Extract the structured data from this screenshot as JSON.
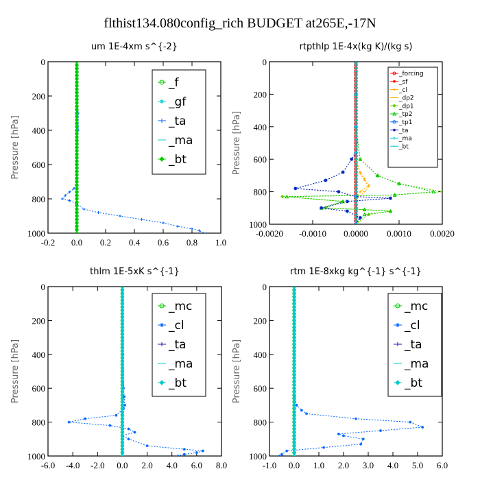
{
  "title": "flthist134.080config_rich  BUDGET at265E,-17N",
  "colors": {
    "green": "#00cc00",
    "blue": "#0066ff",
    "navy": "#1a1aaa",
    "cyan": "#00cccc",
    "red": "#ff0000",
    "orange": "#ffaa00",
    "olive": "#66cc00"
  },
  "chart_data": [
    {
      "type": "line",
      "title": "um   1E-4xm s^{-2}",
      "ylabel": "Pressure [hPa]",
      "xlim": [
        -0.2,
        1.0
      ],
      "ylim": [
        1000,
        0
      ],
      "xticks": [
        "-0.2",
        "0.0",
        "0.2",
        "0.4",
        "0.6",
        "0.8",
        "1.0"
      ],
      "yticks": [
        "0",
        "200",
        "400",
        "600",
        "800",
        "1000"
      ],
      "xtick_values": [
        -0.2,
        0.0,
        0.2,
        0.4,
        0.6,
        0.8,
        1.0
      ],
      "ytick_values": [
        0,
        200,
        400,
        600,
        800,
        1000
      ],
      "legend": [
        "_f",
        "_gf",
        "_ta",
        "_ma",
        "_bt"
      ],
      "legend_size": "large",
      "series": [
        {
          "name": "_f",
          "color": "green",
          "x": [
            0,
            0,
            0,
            0,
            0,
            0,
            0,
            0,
            0,
            0,
            0
          ],
          "y": [
            0,
            100,
            200,
            300,
            400,
            500,
            600,
            700,
            800,
            900,
            1000
          ]
        },
        {
          "name": "_gf",
          "color": "cyan",
          "x": [
            0,
            0,
            0,
            0,
            0,
            0,
            0,
            0,
            0,
            0,
            0
          ],
          "y": [
            0,
            100,
            200,
            300,
            400,
            500,
            600,
            700,
            800,
            900,
            1000
          ]
        },
        {
          "name": "_ta",
          "color": "blue",
          "x": [
            0,
            0,
            0,
            0.01,
            0.01,
            0,
            0,
            0,
            -0.02,
            -0.05,
            -0.08,
            -0.1,
            -0.05,
            0,
            0.05,
            0.15,
            0.3,
            0.45,
            0.6,
            0.7,
            0.8,
            0.85,
            0.88
          ],
          "y": [
            0,
            100,
            200,
            300,
            400,
            500,
            600,
            700,
            740,
            760,
            780,
            800,
            810,
            830,
            860,
            880,
            900,
            920,
            940,
            960,
            975,
            985,
            1000
          ]
        },
        {
          "name": "_ma",
          "color": "cyan",
          "x": [
            0,
            0,
            0,
            0,
            0,
            0,
            0,
            0,
            0,
            0,
            0
          ],
          "y": [
            0,
            100,
            200,
            300,
            400,
            500,
            600,
            700,
            800,
            900,
            1000
          ]
        },
        {
          "name": "_bt",
          "color": "green",
          "x": [
            0,
            0,
            0,
            0,
            0,
            0,
            0,
            0,
            0,
            0,
            0
          ],
          "y": [
            0,
            100,
            200,
            300,
            400,
            500,
            600,
            700,
            800,
            900,
            1000
          ]
        }
      ]
    },
    {
      "type": "line",
      "title": "rtpthlp   1E-4x(kg K)/(kg s)",
      "ylabel": "Pressure [hPa]",
      "xlim": [
        -0.002,
        0.002
      ],
      "ylim": [
        1000,
        0
      ],
      "xticks": [
        "-0.0020",
        "-0.0010",
        "0.0000",
        "0.0010",
        "0.0020"
      ],
      "yticks": [
        "0",
        "200",
        "400",
        "600",
        "800",
        "1000"
      ],
      "xtick_values": [
        -0.002,
        -0.001,
        0.0,
        0.001,
        0.002
      ],
      "ytick_values": [
        0,
        200,
        400,
        600,
        800,
        1000
      ],
      "legend": [
        "_forcing",
        "_sf",
        "_cl",
        "_dp2",
        "_dp1",
        "_tp2",
        "_tp1",
        "_ta",
        "_ma",
        "_bt"
      ],
      "legend_size": "small",
      "series": [
        {
          "name": "_forcing",
          "color": "red",
          "x": [
            0,
            0,
            0,
            0,
            0,
            0,
            0,
            0,
            0,
            0,
            0
          ],
          "y": [
            0,
            100,
            200,
            300,
            400,
            500,
            600,
            700,
            800,
            900,
            1000
          ]
        },
        {
          "name": "_sf",
          "color": "red",
          "x": [
            0,
            0,
            0,
            0,
            0,
            0,
            0,
            0,
            0,
            0,
            0
          ],
          "y": [
            0,
            100,
            200,
            300,
            400,
            500,
            600,
            700,
            800,
            900,
            1000
          ]
        },
        {
          "name": "_cl",
          "color": "orange",
          "x": [
            0,
            0,
            0,
            0,
            0.0001,
            0.0002,
            0.0003,
            0.0001,
            0,
            0,
            0
          ],
          "y": [
            0,
            200,
            400,
            600,
            680,
            720,
            760,
            800,
            850,
            900,
            1000
          ]
        },
        {
          "name": "_dp2",
          "color": "orange",
          "x": [
            0,
            0,
            0,
            0,
            0.0001,
            0.0002,
            0.0003,
            0.0002,
            0,
            0,
            0
          ],
          "y": [
            0,
            200,
            400,
            600,
            690,
            730,
            770,
            800,
            850,
            900,
            1000
          ]
        },
        {
          "name": "_dp1",
          "color": "olive",
          "x": [
            0,
            0,
            0,
            0.0001,
            0.0005,
            0.001,
            0.002,
            0.0009,
            -0.0017,
            -0.0003,
            -0.0007,
            0.0002,
            0.0008,
            0.0003,
            0
          ],
          "y": [
            0,
            200,
            400,
            600,
            700,
            750,
            800,
            820,
            830,
            860,
            900,
            910,
            920,
            940,
            1000
          ]
        },
        {
          "name": "_tp2",
          "color": "green",
          "x": [
            0,
            0,
            0,
            0.0001,
            0.0005,
            0.001,
            0.0018,
            0.0009,
            -0.0016,
            -0.0003,
            -0.0008,
            0.0002,
            0.0008,
            0.0002,
            0
          ],
          "y": [
            0,
            200,
            400,
            600,
            700,
            750,
            800,
            820,
            830,
            860,
            900,
            910,
            920,
            940,
            1000
          ]
        },
        {
          "name": "_tp1",
          "color": "blue",
          "x": [
            0,
            0,
            0,
            0,
            -0.0001,
            -0.0003,
            -0.0007,
            -0.0014,
            -0.0004,
            0,
            0.0008,
            -0.0002,
            -0.0008,
            -0.0002,
            0.0001,
            0
          ],
          "y": [
            0,
            200,
            400,
            560,
            600,
            680,
            730,
            780,
            800,
            830,
            840,
            860,
            900,
            920,
            960,
            1000
          ]
        },
        {
          "name": "_ta",
          "color": "navy",
          "x": [
            0,
            0,
            0,
            0,
            -0.0001,
            -0.0003,
            -0.0007,
            -0.0014,
            -0.0004,
            0,
            0.0008,
            -0.0002,
            -0.0008,
            -0.0002,
            0.0001,
            0
          ],
          "y": [
            0,
            200,
            400,
            560,
            600,
            680,
            730,
            780,
            800,
            830,
            840,
            860,
            900,
            920,
            960,
            1000
          ]
        },
        {
          "name": "_ma",
          "color": "cyan",
          "x": [
            0,
            0,
            0,
            0,
            0,
            0,
            0,
            0,
            0,
            0,
            0
          ],
          "y": [
            0,
            100,
            200,
            300,
            400,
            500,
            600,
            700,
            800,
            900,
            1000
          ]
        },
        {
          "name": "_bt",
          "color": "cyan",
          "x": [
            0,
            0,
            0,
            0,
            0,
            0,
            0,
            0,
            0,
            0,
            0
          ],
          "y": [
            0,
            100,
            200,
            300,
            400,
            500,
            600,
            700,
            800,
            900,
            1000
          ]
        }
      ]
    },
    {
      "type": "line",
      "title": "thlm   1E-5xK s^{-1}",
      "ylabel": "Pressure [hPa]",
      "xlim": [
        -6.0,
        8.0
      ],
      "ylim": [
        1000,
        0
      ],
      "xticks": [
        "-6.0",
        "-4.0",
        "-2.0",
        "0.0",
        "2.0",
        "4.0",
        "6.0",
        "8.0"
      ],
      "yticks": [
        "0",
        "200",
        "400",
        "600",
        "800",
        "1000"
      ],
      "xtick_values": [
        -6,
        -4,
        -2,
        0,
        2,
        4,
        6,
        8
      ],
      "ytick_values": [
        0,
        200,
        400,
        600,
        800,
        1000
      ],
      "legend": [
        "_mc",
        "_cl",
        "_ta",
        "_ma",
        "_bt"
      ],
      "legend_size": "large",
      "series": [
        {
          "name": "_mc",
          "color": "green",
          "x": [
            0,
            0,
            0,
            0,
            0,
            0,
            0,
            0,
            0,
            0,
            0
          ],
          "y": [
            0,
            100,
            200,
            300,
            400,
            500,
            600,
            700,
            800,
            900,
            1000
          ]
        },
        {
          "name": "_cl",
          "color": "blue",
          "x": [
            0,
            0.02,
            0.05,
            0.1,
            0.15,
            0.2,
            0.1,
            -0.5,
            -3,
            -4.3,
            -1,
            0.5,
            1,
            0,
            0.5,
            2,
            5,
            6.5,
            6,
            5,
            4.5
          ],
          "y": [
            0,
            200,
            400,
            600,
            650,
            700,
            720,
            760,
            780,
            800,
            820,
            840,
            860,
            880,
            900,
            940,
            960,
            970,
            980,
            990,
            1000
          ]
        },
        {
          "name": "_ta",
          "color": "navy",
          "x": [
            0,
            0,
            0,
            0,
            0,
            0,
            0,
            0,
            0,
            0,
            0
          ],
          "y": [
            0,
            100,
            200,
            300,
            400,
            500,
            600,
            700,
            800,
            900,
            1000
          ]
        },
        {
          "name": "_ma",
          "color": "cyan",
          "x": [
            0,
            0,
            0,
            0,
            0,
            0,
            0,
            0,
            0,
            0,
            0
          ],
          "y": [
            0,
            100,
            200,
            300,
            400,
            500,
            600,
            700,
            800,
            900,
            1000
          ]
        },
        {
          "name": "_bt",
          "color": "cyan",
          "x": [
            0,
            0,
            0,
            0,
            0,
            0,
            0,
            0,
            0,
            0,
            0
          ],
          "y": [
            0,
            100,
            200,
            300,
            400,
            500,
            600,
            700,
            800,
            900,
            1000
          ]
        }
      ]
    },
    {
      "type": "line",
      "title": "rtm   1E-8xkg kg^{-1} s^{-1}",
      "ylabel": "Pressure [hPa]",
      "xlim": [
        -1.0,
        6.0
      ],
      "ylim": [
        1000,
        0
      ],
      "xticks": [
        "-1.0",
        "0.0",
        "1.0",
        "2.0",
        "3.0",
        "4.0",
        "5.0",
        "6.0"
      ],
      "yticks": [
        "0",
        "200",
        "400",
        "600",
        "800",
        "1000"
      ],
      "xtick_values": [
        -1,
        0,
        1,
        2,
        3,
        4,
        5,
        6
      ],
      "ytick_values": [
        0,
        200,
        400,
        600,
        800,
        1000
      ],
      "legend": [
        "_mc",
        "_cl",
        "_ta",
        "_ma",
        "_bt"
      ],
      "legend_size": "large",
      "series": [
        {
          "name": "_mc",
          "color": "green",
          "x": [
            0,
            0,
            0,
            0,
            0,
            0,
            0,
            0,
            0,
            0,
            0
          ],
          "y": [
            0,
            100,
            200,
            300,
            400,
            500,
            600,
            700,
            800,
            900,
            1000
          ]
        },
        {
          "name": "_cl",
          "color": "blue",
          "x": [
            0,
            0,
            0,
            0,
            0,
            0.1,
            0.3,
            0.5,
            2.5,
            4.7,
            5.2,
            3.5,
            1.8,
            2,
            2.8,
            2.7,
            1.2,
            -0.3,
            -0.5,
            -0.6
          ],
          "y": [
            0,
            200,
            400,
            600,
            650,
            700,
            730,
            750,
            780,
            800,
            830,
            850,
            870,
            880,
            900,
            930,
            950,
            970,
            990,
            1000
          ]
        },
        {
          "name": "_ta",
          "color": "navy",
          "x": [
            0,
            0,
            0,
            0,
            0,
            0,
            0,
            0,
            0,
            0,
            0
          ],
          "y": [
            0,
            100,
            200,
            300,
            400,
            500,
            600,
            700,
            800,
            900,
            1000
          ]
        },
        {
          "name": "_ma",
          "color": "cyan",
          "x": [
            0,
            0,
            0,
            0,
            0,
            0,
            0,
            0,
            0,
            0,
            0
          ],
          "y": [
            0,
            100,
            200,
            300,
            400,
            500,
            600,
            700,
            800,
            900,
            1000
          ]
        },
        {
          "name": "_bt",
          "color": "cyan",
          "x": [
            0,
            0,
            0,
            0,
            0,
            0,
            0,
            0,
            0,
            0,
            0
          ],
          "y": [
            0,
            100,
            200,
            300,
            400,
            500,
            600,
            700,
            800,
            900,
            1000
          ]
        }
      ]
    }
  ]
}
